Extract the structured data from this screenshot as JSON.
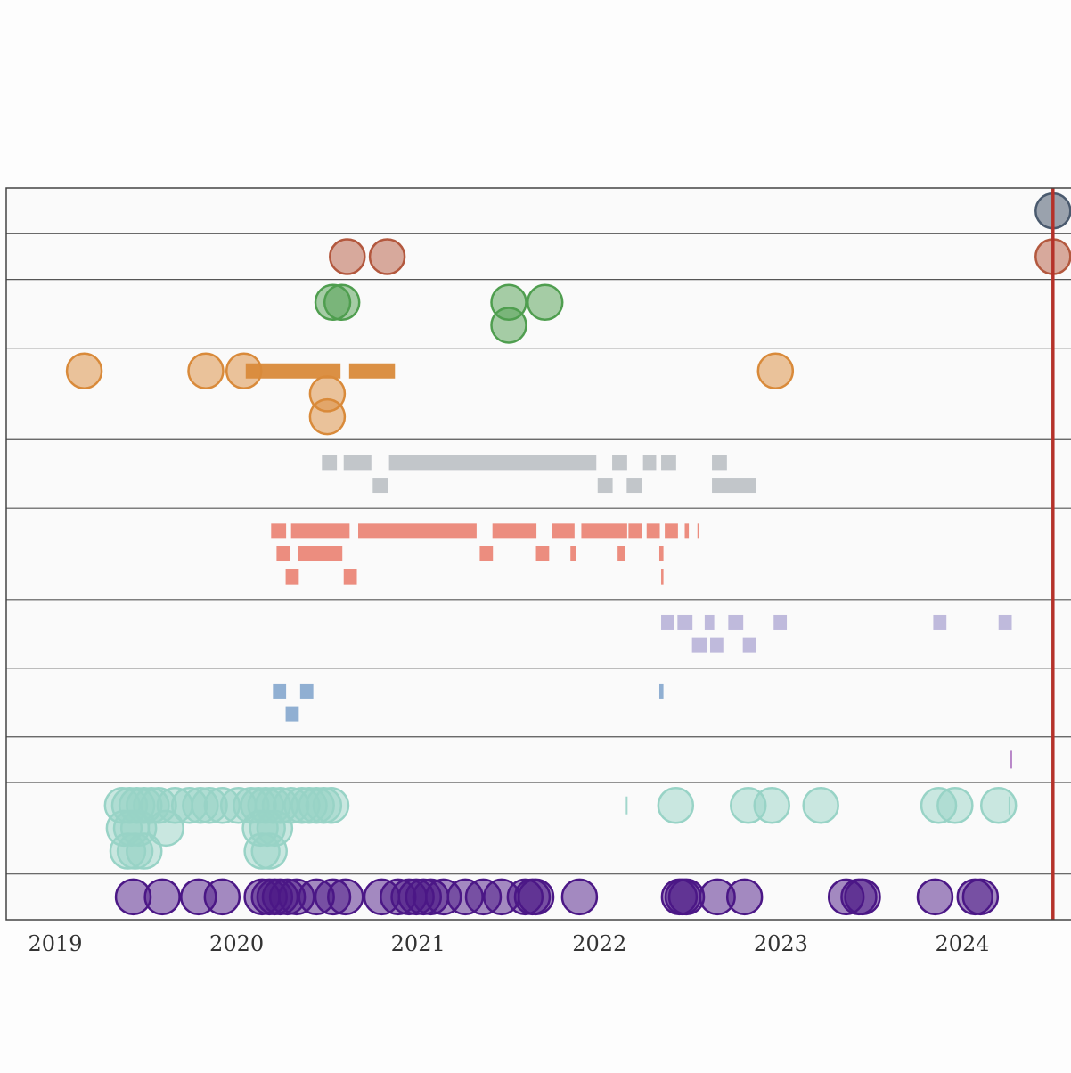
{
  "chart_data": {
    "type": "scatter",
    "title": "",
    "xlabel": "",
    "ylabel": "",
    "xlim": [
      2018.72,
      2024.62
    ],
    "x_ticks": [
      "2019",
      "2020",
      "2021",
      "2022",
      "2023",
      "2024"
    ],
    "x_tick_values": [
      2019,
      2020,
      2021,
      2022,
      2023,
      2024
    ],
    "today_marker": {
      "x": 2024.5,
      "color": "#b5322a"
    },
    "rows": [
      {
        "id": "row-1",
        "color": "#4a5a6e",
        "lanes": 1,
        "events": [
          {
            "kind": "circle",
            "x": 2024.5,
            "lane": 0,
            "dark": true
          }
        ]
      },
      {
        "id": "row-2",
        "color": "#b3583e",
        "lanes": 1,
        "events": [
          {
            "kind": "circle",
            "x": 2020.61,
            "lane": 0
          },
          {
            "kind": "circle",
            "x": 2020.83,
            "lane": 0
          },
          {
            "kind": "circle",
            "x": 2024.5,
            "lane": 0
          }
        ]
      },
      {
        "id": "row-3",
        "color": "#4f9e4f",
        "lanes": 2,
        "events": [
          {
            "kind": "circle",
            "x": 2020.53,
            "lane": 0
          },
          {
            "kind": "circle",
            "x": 2020.58,
            "lane": 0
          },
          {
            "kind": "circle",
            "x": 2021.5,
            "lane": 0
          },
          {
            "kind": "circle",
            "x": 2021.7,
            "lane": 0
          },
          {
            "kind": "circle",
            "x": 2021.5,
            "lane": 1
          }
        ]
      },
      {
        "id": "row-4",
        "color": "#d98a3a",
        "lanes": 3,
        "events": [
          {
            "kind": "circle",
            "x": 2019.16,
            "lane": 0
          },
          {
            "kind": "circle",
            "x": 2019.83,
            "lane": 0
          },
          {
            "kind": "circle",
            "x": 2020.04,
            "lane": 0
          },
          {
            "kind": "bar",
            "x0": 2020.05,
            "x1": 2020.58,
            "lane": 0
          },
          {
            "kind": "bar",
            "x0": 2020.62,
            "x1": 2020.88,
            "lane": 0
          },
          {
            "kind": "circle",
            "x": 2020.5,
            "lane": 1
          },
          {
            "kind": "circle",
            "x": 2020.5,
            "lane": 2
          },
          {
            "kind": "circle",
            "x": 2022.97,
            "lane": 0
          }
        ]
      },
      {
        "id": "row-5",
        "color": "#bfc3c7",
        "lanes": 2,
        "events": [
          {
            "kind": "bar",
            "x0": 2020.47,
            "x1": 2020.56,
            "lane": 0
          },
          {
            "kind": "bar",
            "x0": 2020.59,
            "x1": 2020.75,
            "lane": 0
          },
          {
            "kind": "bar",
            "x0": 2020.84,
            "x1": 2021.99,
            "lane": 0
          },
          {
            "kind": "bar",
            "x0": 2022.07,
            "x1": 2022.16,
            "lane": 0
          },
          {
            "kind": "bar",
            "x0": 2022.24,
            "x1": 2022.32,
            "lane": 0
          },
          {
            "kind": "bar",
            "x0": 2022.34,
            "x1": 2022.43,
            "lane": 0
          },
          {
            "kind": "bar",
            "x0": 2022.62,
            "x1": 2022.71,
            "lane": 0
          },
          {
            "kind": "bar",
            "x0": 2020.75,
            "x1": 2020.84,
            "lane": 1
          },
          {
            "kind": "bar",
            "x0": 2021.99,
            "x1": 2022.08,
            "lane": 1
          },
          {
            "kind": "bar",
            "x0": 2022.15,
            "x1": 2022.24,
            "lane": 1
          },
          {
            "kind": "bar",
            "x0": 2022.62,
            "x1": 2022.87,
            "lane": 1
          }
        ]
      },
      {
        "id": "row-6",
        "color": "#eb8778",
        "lanes": 3,
        "events": [
          {
            "kind": "bar",
            "x0": 2020.19,
            "x1": 2020.28,
            "lane": 0
          },
          {
            "kind": "bar",
            "x0": 2020.3,
            "x1": 2020.63,
            "lane": 0
          },
          {
            "kind": "bar",
            "x0": 2020.67,
            "x1": 2021.33,
            "lane": 0
          },
          {
            "kind": "bar",
            "x0": 2021.41,
            "x1": 2021.66,
            "lane": 0
          },
          {
            "kind": "bar",
            "x0": 2021.74,
            "x1": 2021.87,
            "lane": 0
          },
          {
            "kind": "bar",
            "x0": 2021.9,
            "x1": 2022.16,
            "lane": 0
          },
          {
            "kind": "bar",
            "x0": 2022.16,
            "x1": 2022.24,
            "lane": 0
          },
          {
            "kind": "bar",
            "x0": 2022.26,
            "x1": 2022.34,
            "lane": 0
          },
          {
            "kind": "bar",
            "x0": 2022.36,
            "x1": 2022.44,
            "lane": 0
          },
          {
            "kind": "bar",
            "x0": 2022.47,
            "x1": 2022.5,
            "lane": 0
          },
          {
            "kind": "bar",
            "x0": 2022.54,
            "x1": 2022.55,
            "lane": 0
          },
          {
            "kind": "bar",
            "x0": 2020.22,
            "x1": 2020.3,
            "lane": 1
          },
          {
            "kind": "bar",
            "x0": 2020.34,
            "x1": 2020.59,
            "lane": 1
          },
          {
            "kind": "bar",
            "x0": 2021.34,
            "x1": 2021.42,
            "lane": 1
          },
          {
            "kind": "bar",
            "x0": 2021.65,
            "x1": 2021.73,
            "lane": 1
          },
          {
            "kind": "bar",
            "x0": 2021.84,
            "x1": 2021.88,
            "lane": 1
          },
          {
            "kind": "bar",
            "x0": 2022.1,
            "x1": 2022.15,
            "lane": 1
          },
          {
            "kind": "bar",
            "x0": 2022.33,
            "x1": 2022.36,
            "lane": 1
          },
          {
            "kind": "bar",
            "x0": 2020.27,
            "x1": 2020.35,
            "lane": 2
          },
          {
            "kind": "bar",
            "x0": 2020.59,
            "x1": 2020.67,
            "lane": 2
          },
          {
            "kind": "bar",
            "x0": 2022.34,
            "x1": 2022.36,
            "lane": 2
          }
        ]
      },
      {
        "id": "row-7",
        "color": "#bcb6da",
        "lanes": 2,
        "events": [
          {
            "kind": "bar",
            "x0": 2022.34,
            "x1": 2022.42,
            "lane": 0
          },
          {
            "kind": "bar",
            "x0": 2022.43,
            "x1": 2022.52,
            "lane": 0
          },
          {
            "kind": "bar",
            "x0": 2022.58,
            "x1": 2022.64,
            "lane": 0
          },
          {
            "kind": "bar",
            "x0": 2022.71,
            "x1": 2022.8,
            "lane": 0
          },
          {
            "kind": "bar",
            "x0": 2022.96,
            "x1": 2023.04,
            "lane": 0
          },
          {
            "kind": "bar",
            "x0": 2023.84,
            "x1": 2023.92,
            "lane": 0
          },
          {
            "kind": "bar",
            "x0": 2024.2,
            "x1": 2024.28,
            "lane": 0
          },
          {
            "kind": "bar",
            "x0": 2022.51,
            "x1": 2022.6,
            "lane": 1
          },
          {
            "kind": "bar",
            "x0": 2022.61,
            "x1": 2022.69,
            "lane": 1
          },
          {
            "kind": "bar",
            "x0": 2022.79,
            "x1": 2022.87,
            "lane": 1
          }
        ]
      },
      {
        "id": "row-8",
        "color": "#8aabd0",
        "lanes": 2,
        "events": [
          {
            "kind": "bar",
            "x0": 2020.2,
            "x1": 2020.28,
            "lane": 0
          },
          {
            "kind": "bar",
            "x0": 2020.35,
            "x1": 2020.43,
            "lane": 0
          },
          {
            "kind": "bar",
            "x0": 2022.33,
            "x1": 2022.36,
            "lane": 0
          },
          {
            "kind": "bar",
            "x0": 2020.27,
            "x1": 2020.35,
            "lane": 1
          }
        ]
      },
      {
        "id": "row-9",
        "color": "#b07ac2",
        "lanes": 1,
        "events": [
          {
            "kind": "tick",
            "x": 2024.27,
            "lane": 0
          }
        ]
      },
      {
        "id": "row-10",
        "color": "#98d3c6",
        "lanes": 3,
        "events": [
          {
            "kind": "circle",
            "x": 2019.37,
            "lane": 0
          },
          {
            "kind": "circle",
            "x": 2019.41,
            "lane": 0
          },
          {
            "kind": "circle",
            "x": 2019.45,
            "lane": 0
          },
          {
            "kind": "circle",
            "x": 2019.49,
            "lane": 0
          },
          {
            "kind": "circle",
            "x": 2019.53,
            "lane": 0
          },
          {
            "kind": "circle",
            "x": 2019.57,
            "lane": 0
          },
          {
            "kind": "circle",
            "x": 2019.66,
            "lane": 0
          },
          {
            "kind": "circle",
            "x": 2019.74,
            "lane": 0
          },
          {
            "kind": "circle",
            "x": 2019.8,
            "lane": 0
          },
          {
            "kind": "circle",
            "x": 2019.85,
            "lane": 0
          },
          {
            "kind": "circle",
            "x": 2019.92,
            "lane": 0
          },
          {
            "kind": "circle",
            "x": 2020.01,
            "lane": 0
          },
          {
            "kind": "circle",
            "x": 2020.08,
            "lane": 0
          },
          {
            "kind": "circle",
            "x": 2020.12,
            "lane": 0
          },
          {
            "kind": "circle",
            "x": 2020.16,
            "lane": 0
          },
          {
            "kind": "circle",
            "x": 2020.2,
            "lane": 0
          },
          {
            "kind": "circle",
            "x": 2020.24,
            "lane": 0
          },
          {
            "kind": "circle",
            "x": 2020.3,
            "lane": 0
          },
          {
            "kind": "circle",
            "x": 2020.36,
            "lane": 0
          },
          {
            "kind": "circle",
            "x": 2020.4,
            "lane": 0
          },
          {
            "kind": "circle",
            "x": 2020.44,
            "lane": 0
          },
          {
            "kind": "circle",
            "x": 2020.48,
            "lane": 0
          },
          {
            "kind": "circle",
            "x": 2020.52,
            "lane": 0
          },
          {
            "kind": "circle",
            "x": 2019.38,
            "lane": 1
          },
          {
            "kind": "circle",
            "x": 2019.42,
            "lane": 1
          },
          {
            "kind": "circle",
            "x": 2019.46,
            "lane": 1
          },
          {
            "kind": "circle",
            "x": 2019.61,
            "lane": 1
          },
          {
            "kind": "circle",
            "x": 2020.13,
            "lane": 1
          },
          {
            "kind": "circle",
            "x": 2020.17,
            "lane": 1
          },
          {
            "kind": "circle",
            "x": 2020.21,
            "lane": 1
          },
          {
            "kind": "circle",
            "x": 2019.4,
            "lane": 2
          },
          {
            "kind": "circle",
            "x": 2019.44,
            "lane": 2
          },
          {
            "kind": "circle",
            "x": 2019.49,
            "lane": 2
          },
          {
            "kind": "circle",
            "x": 2020.14,
            "lane": 2
          },
          {
            "kind": "circle",
            "x": 2020.18,
            "lane": 2
          },
          {
            "kind": "tick",
            "x": 2022.15,
            "lane": 0
          },
          {
            "kind": "circle",
            "x": 2022.42,
            "lane": 0
          },
          {
            "kind": "circle",
            "x": 2022.82,
            "lane": 0
          },
          {
            "kind": "circle",
            "x": 2022.95,
            "lane": 0
          },
          {
            "kind": "circle",
            "x": 2023.22,
            "lane": 0
          },
          {
            "kind": "circle",
            "x": 2023.87,
            "lane": 0
          },
          {
            "kind": "circle",
            "x": 2023.96,
            "lane": 0
          },
          {
            "kind": "circle",
            "x": 2024.2,
            "lane": 0
          },
          {
            "kind": "tick",
            "x": 2024.26,
            "lane": 0
          }
        ]
      },
      {
        "id": "row-11",
        "color": "#4b1786",
        "lanes": 1,
        "events": [
          {
            "kind": "circle",
            "x": 2019.43,
            "lane": 0
          },
          {
            "kind": "circle",
            "x": 2019.59,
            "lane": 0
          },
          {
            "kind": "circle",
            "x": 2019.79,
            "lane": 0
          },
          {
            "kind": "circle",
            "x": 2019.92,
            "lane": 0
          },
          {
            "kind": "circle",
            "x": 2020.14,
            "lane": 0
          },
          {
            "kind": "circle",
            "x": 2020.18,
            "lane": 0
          },
          {
            "kind": "circle",
            "x": 2020.21,
            "lane": 0
          },
          {
            "kind": "circle",
            "x": 2020.24,
            "lane": 0
          },
          {
            "kind": "circle",
            "x": 2020.28,
            "lane": 0
          },
          {
            "kind": "circle",
            "x": 2020.33,
            "lane": 0
          },
          {
            "kind": "circle",
            "x": 2020.44,
            "lane": 0
          },
          {
            "kind": "circle",
            "x": 2020.53,
            "lane": 0
          },
          {
            "kind": "circle",
            "x": 2020.6,
            "lane": 0
          },
          {
            "kind": "circle",
            "x": 2020.8,
            "lane": 0
          },
          {
            "kind": "circle",
            "x": 2020.89,
            "lane": 0
          },
          {
            "kind": "circle",
            "x": 2020.95,
            "lane": 0
          },
          {
            "kind": "circle",
            "x": 2020.99,
            "lane": 0
          },
          {
            "kind": "circle",
            "x": 2021.03,
            "lane": 0
          },
          {
            "kind": "circle",
            "x": 2021.07,
            "lane": 0
          },
          {
            "kind": "circle",
            "x": 2021.14,
            "lane": 0
          },
          {
            "kind": "circle",
            "x": 2021.26,
            "lane": 0
          },
          {
            "kind": "circle",
            "x": 2021.36,
            "lane": 0
          },
          {
            "kind": "circle",
            "x": 2021.46,
            "lane": 0
          },
          {
            "kind": "circle",
            "x": 2021.59,
            "lane": 0
          },
          {
            "kind": "circle",
            "x": 2021.63,
            "lane": 0
          },
          {
            "kind": "circle",
            "x": 2021.65,
            "lane": 0
          },
          {
            "kind": "circle",
            "x": 2021.89,
            "lane": 0
          },
          {
            "kind": "circle",
            "x": 2022.44,
            "lane": 0
          },
          {
            "kind": "circle",
            "x": 2022.46,
            "lane": 0
          },
          {
            "kind": "circle",
            "x": 2022.48,
            "lane": 0
          },
          {
            "kind": "circle",
            "x": 2022.65,
            "lane": 0
          },
          {
            "kind": "circle",
            "x": 2022.8,
            "lane": 0
          },
          {
            "kind": "circle",
            "x": 2023.36,
            "lane": 0
          },
          {
            "kind": "circle",
            "x": 2023.43,
            "lane": 0
          },
          {
            "kind": "circle",
            "x": 2023.45,
            "lane": 0
          },
          {
            "kind": "circle",
            "x": 2023.85,
            "lane": 0
          },
          {
            "kind": "circle",
            "x": 2024.07,
            "lane": 0
          },
          {
            "kind": "circle",
            "x": 2024.1,
            "lane": 0
          }
        ]
      }
    ]
  }
}
